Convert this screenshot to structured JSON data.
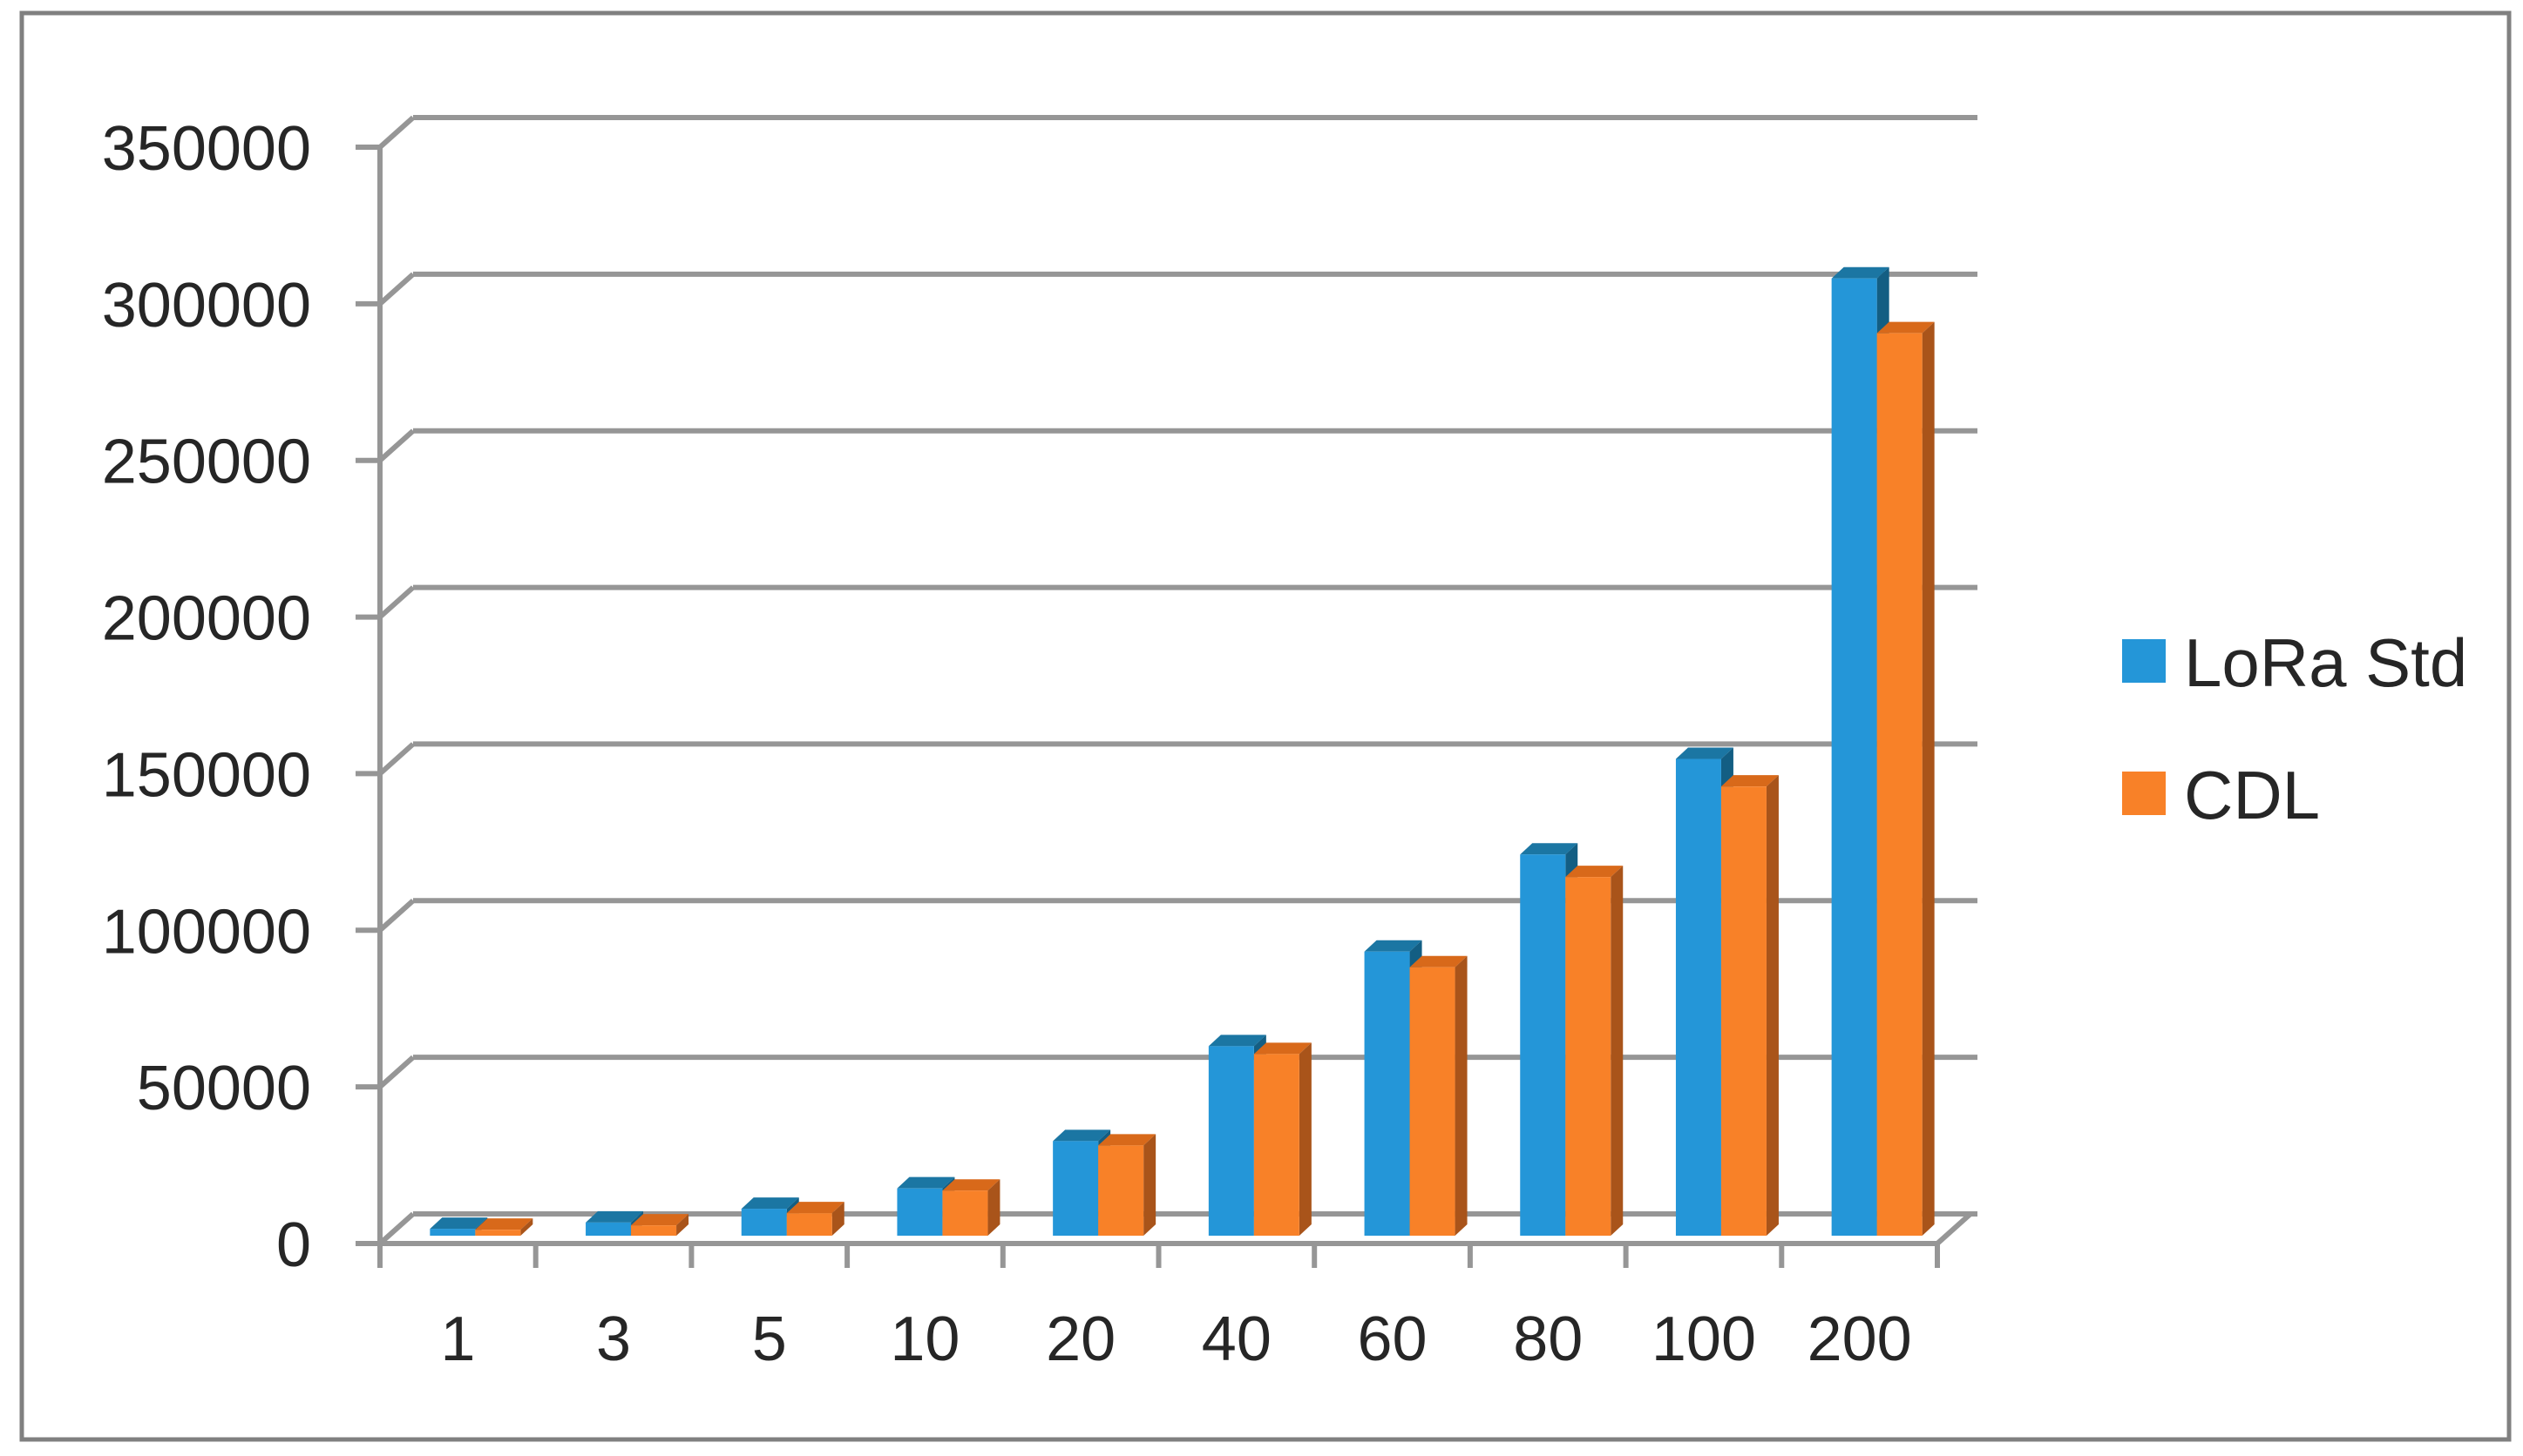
{
  "chart_data": {
    "type": "bar",
    "variant": "3d-clustered-column",
    "title": "",
    "xlabel": "",
    "ylabel": "",
    "categories": [
      "1",
      "3",
      "5",
      "10",
      "20",
      "40",
      "60",
      "80",
      "100",
      "200"
    ],
    "series": [
      {
        "name": "LoRa Std",
        "color": "#2496D8",
        "color_top": "#1B76A3",
        "color_side": "#135E83",
        "values": [
          2200,
          4200,
          8600,
          15100,
          30200,
          60500,
          90700,
          121700,
          152200,
          305600
        ]
      },
      {
        "name": "CDL",
        "color": "#F88128",
        "color_top": "#D8691A",
        "color_side": "#A9541A",
        "values": [
          1900,
          3300,
          7200,
          14400,
          28800,
          58000,
          85700,
          114500,
          143400,
          288100
        ]
      }
    ],
    "ylim": [
      0,
      350000
    ],
    "ytick_step": 50000,
    "ytick_labels": [
      "0",
      "50000",
      "100000",
      "150000",
      "200000",
      "250000",
      "300000",
      "350000"
    ],
    "grid": true,
    "legend_position": "right"
  },
  "legend": {
    "items": [
      {
        "label": "LoRa Std",
        "color": "#2496D8"
      },
      {
        "label": "CDL",
        "color": "#F88128"
      }
    ]
  },
  "colors": {
    "axis_gray": "#969696",
    "border_gray": "#808080",
    "text": "#262626",
    "background": "#FFFFFF"
  }
}
